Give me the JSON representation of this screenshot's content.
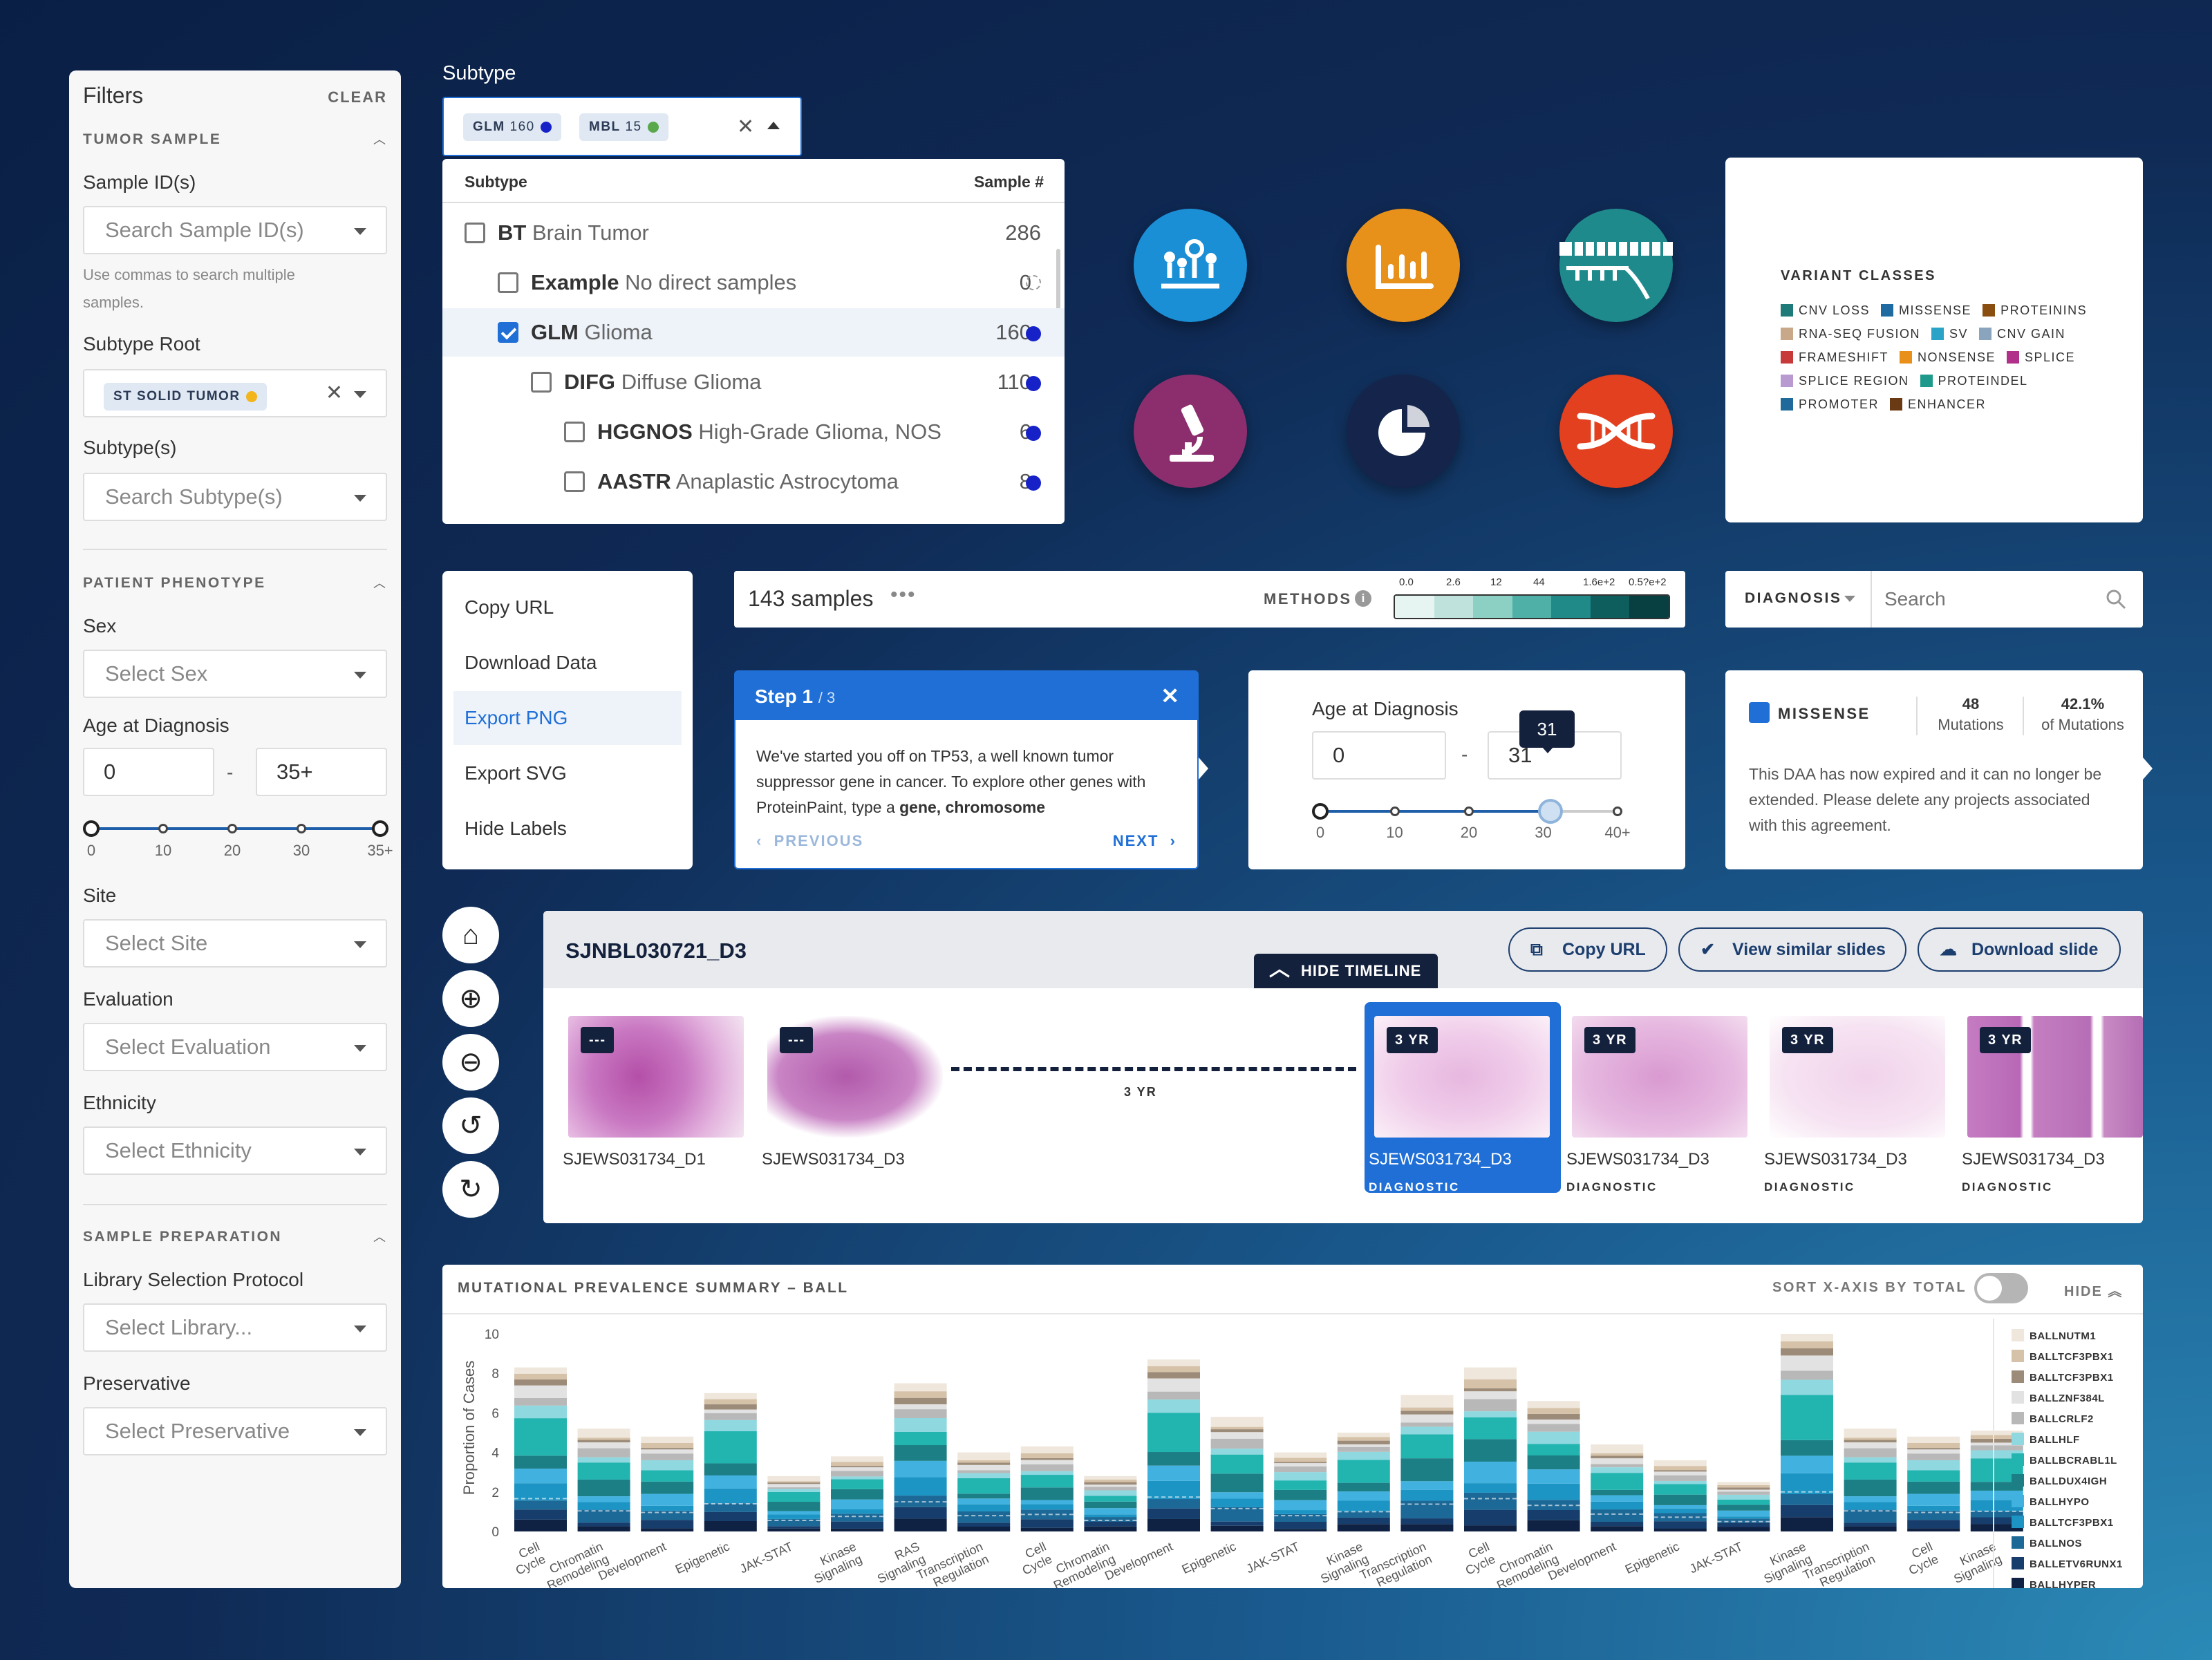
{
  "sidebar": {
    "title": "Filters",
    "clear": "CLEAR",
    "sec_tumor": "TUMOR SAMPLE",
    "lbl_sample_ids": "Sample ID(s)",
    "ph_sample_ids": "Search Sample ID(s)",
    "help": "Use commas to search multiple samples.",
    "lbl_subtype_root": "Subtype Root",
    "chip_root": "ST SOLID TUMOR",
    "lbl_subtypes": "Subtype(s)",
    "ph_subtypes": "Search Subtype(s)",
    "sec_patient": "PATIENT PHENOTYPE",
    "lbl_sex": "Sex",
    "ph_sex": "Select Sex",
    "lbl_age": "Age at Diagnosis",
    "age_min": "0",
    "age_sep": "-",
    "age_max": "35+",
    "age_ticks": [
      "0",
      "10",
      "20",
      "30",
      "35+"
    ],
    "lbl_site": "Site",
    "ph_site": "Select Site",
    "lbl_eval": "Evaluation",
    "ph_eval": "Select Evaluation",
    "lbl_eth": "Ethnicity",
    "ph_eth": "Select Ethnicity",
    "sec_prep": "SAMPLE PREPARATION",
    "lbl_lib": "Library Selection Protocol",
    "ph_lib": "Select Library...",
    "lbl_pres": "Preservative",
    "ph_pres": "Select Preservative"
  },
  "subtype": {
    "label": "Subtype",
    "chips": [
      {
        "code": "GLM",
        "n": "160",
        "color": "#1622c8"
      },
      {
        "code": "MBL",
        "n": "15",
        "color": "#5aa84c"
      }
    ],
    "col_subtype": "Subtype",
    "col_sample": "Sample #",
    "rows": [
      {
        "code": "BT",
        "name": "Brain Tumor",
        "count": "286",
        "checked": false,
        "indent": 0,
        "dot": ""
      },
      {
        "code": "Example",
        "name": "No direct samples",
        "count": "0",
        "checked": false,
        "indent": 1,
        "dot": "empty"
      },
      {
        "code": "GLM",
        "name": "Glioma",
        "count": "160",
        "checked": true,
        "indent": 1,
        "dot": "#1622c8"
      },
      {
        "code": "DIFG",
        "name": "Diffuse Glioma",
        "count": "110",
        "checked": false,
        "indent": 2,
        "dot": "#1622c8"
      },
      {
        "code": "HGGNOS",
        "name": "High-Grade Glioma, NOS",
        "count": "6",
        "checked": false,
        "indent": 3,
        "dot": "#1622c8"
      },
      {
        "code": "AASTR",
        "name": "Anaplastic Astrocytoma",
        "count": "8",
        "checked": false,
        "indent": 3,
        "dot": "#1622c8"
      }
    ]
  },
  "icons": [
    {
      "name": "molecule-plot-icon",
      "color": "#1a8fd6"
    },
    {
      "name": "bar-chart-icon",
      "color": "#e8911a"
    },
    {
      "name": "protein-track-icon",
      "color": "#1f8a8c"
    },
    {
      "name": "microscope-icon",
      "color": "#8c2e6e"
    },
    {
      "name": "pie-chart-icon",
      "color": "#14244a"
    },
    {
      "name": "fusion-icon",
      "color": "#e2401f"
    }
  ],
  "variant": {
    "title": "VARIANT CLASSES",
    "rows": [
      [
        {
          "t": "CNV LOSS",
          "c": "#1f7a7a"
        },
        {
          "t": "MISSENSE",
          "c": "#1f6aa0"
        },
        {
          "t": "PROTEININS",
          "c": "#8a4f10"
        }
      ],
      [
        {
          "t": "RNA-SEQ FUSION",
          "c": "#c8a888"
        },
        {
          "t": "SV",
          "c": "#2aa3c8"
        },
        {
          "t": "CNV GAIN",
          "c": "#8aa4bd"
        }
      ],
      [
        {
          "t": "FRAMESHIFT",
          "c": "#c83a3a"
        },
        {
          "t": "NONSENSE",
          "c": "#e8901a"
        },
        {
          "t": "SPLICE",
          "c": "#b0308a"
        }
      ],
      [
        {
          "t": "SPLICE REGION",
          "c": "#b89ad0"
        },
        {
          "t": "PROTEINDEL",
          "c": "#1f9a8a"
        }
      ],
      [
        {
          "t": "PROMOTER",
          "c": "#1f6a9a"
        },
        {
          "t": "ENHANCER",
          "c": "#6a3a14"
        }
      ]
    ]
  },
  "menu": {
    "items": [
      "Copy URL",
      "Download Data",
      "Export PNG",
      "Export SVG",
      "Hide Labels"
    ],
    "active": 2
  },
  "samples": {
    "count": "143 samples",
    "methods": "METHODS",
    "scale": [
      "0.0",
      "2.6",
      "12",
      "44",
      "1.6e+2",
      "0.5?e+2"
    ],
    "scale_colors": [
      "#e6f4f2",
      "#bfe3dc",
      "#8ccfc3",
      "#4fb0a8",
      "#1f8a88",
      "#0e5e5e",
      "#083f40"
    ]
  },
  "diagnosis": {
    "label": "DIAGNOSIS",
    "placeholder": "Search"
  },
  "tour": {
    "step": "Step 1",
    "of": "/ 3",
    "text1": "We've started you off on TP53, a well known tumor suppressor gene in cancer. To explore other genes with ProteinPaint, type a ",
    "bold": "gene, chromosome",
    "prev": "PREVIOUS",
    "next": "NEXT"
  },
  "age": {
    "title": "Age at Diagnosis",
    "min": "0",
    "sep": "-",
    "max": "31",
    "tooltip": "31",
    "value": 31,
    "ticks": [
      "0",
      "10",
      "20",
      "30",
      "40+"
    ]
  },
  "missense": {
    "label": "MISSENSE",
    "mut": "48",
    "mut_lbl": "Mutations",
    "pct": "42.1%",
    "pct_lbl": "of Mutations",
    "text": "This DAA has now expired and it can no longer be extended. Please delete any projects associated with this agreement."
  },
  "slides": {
    "id": "SJNBL030721_D3",
    "copy": "Copy URL",
    "similar": "View similar slides",
    "download": "Download slide",
    "hide": "HIDE TIMELINE",
    "gap": "3 YR",
    "items": [
      {
        "badge": "---",
        "name": "SJEWS031734_D1",
        "diag": ""
      },
      {
        "badge": "---",
        "name": "SJEWS031734_D3",
        "diag": ""
      },
      {
        "badge": "3 YR",
        "name": "SJEWS031734_D3",
        "diag": "DIAGNOSTIC"
      },
      {
        "badge": "3 YR",
        "name": "SJEWS031734_D3",
        "diag": "DIAGNOSTIC"
      },
      {
        "badge": "3 YR",
        "name": "SJEWS031734_D3",
        "diag": "DIAGNOSTIC"
      },
      {
        "badge": "3 YR",
        "name": "SJEWS031734_D3",
        "diag": "DIAGNOSTIC"
      }
    ]
  },
  "zoom": [
    "home-icon",
    "zoom-in-icon",
    "zoom-out-icon",
    "rotate-left-icon",
    "rotate-right-icon"
  ],
  "chart_data": {
    "type": "bar",
    "title": "MUTATIONAL PREVALENCE SUMMARY – BALL",
    "sort_label": "SORT X-AXIS BY TOTAL",
    "hide_label": "HIDE",
    "ylabel": "Proportion of Cases",
    "ylim": [
      0,
      10
    ],
    "yticks": [
      "0",
      "2",
      "4",
      "6",
      "8",
      "10"
    ],
    "categories": [
      "Cell Cycle",
      "Chromatin Remodeling",
      "Development",
      "Epigenetic",
      "JAK-STAT",
      "Kinase Signaling",
      "RAS Signaling",
      "Transcription Regulation",
      "Cell Cycle",
      "Chromatin Remodeling",
      "Development",
      "Epigenetic",
      "JAK-STAT",
      "Kinase Signaling",
      "Transcription Regulation",
      "Cell Cycle",
      "Chromatin Remodeling",
      "Development",
      "Epigenetic",
      "JAK-STAT",
      "Kinase Signaling",
      "Transcription Regulation",
      "Cell Cycle",
      "Kinase Signaling"
    ],
    "totals": [
      8.3,
      5.2,
      4.8,
      7.0,
      2.8,
      3.8,
      7.5,
      4.0,
      4.3,
      2.8,
      8.7,
      5.8,
      4.0,
      5.0,
      6.9,
      8.3,
      6.6,
      4.4,
      3.6,
      2.5,
      10.0,
      5.2,
      4.8,
      5.1
    ],
    "series": [
      {
        "name": "BALLNUTM1",
        "color": "#efe7dc"
      },
      {
        "name": "BALLTCF3PBX1",
        "color": "#d6c2a8"
      },
      {
        "name": "BALLTCF3PBX1",
        "color": "#9c8b78"
      },
      {
        "name": "BALLZNF384L",
        "color": "#e2e2e2"
      },
      {
        "name": "BALLCRLF2",
        "color": "#b8b8b8"
      },
      {
        "name": "BALLHLF",
        "color": "#8fd8e0"
      },
      {
        "name": "BALLBCRABL1L",
        "color": "#22b5b0"
      },
      {
        "name": "BALLDUX4IGH",
        "color": "#1c7f85"
      },
      {
        "name": "BALLHYPO",
        "color": "#41b2e0"
      },
      {
        "name": "BALLTCF3PBX1",
        "color": "#1d95c4"
      },
      {
        "name": "BALLNOS",
        "color": "#1c6896"
      },
      {
        "name": "BALLETV6RUNX1",
        "color": "#163d6b"
      },
      {
        "name": "BALLHYPER",
        "color": "#0f2244"
      }
    ]
  }
}
